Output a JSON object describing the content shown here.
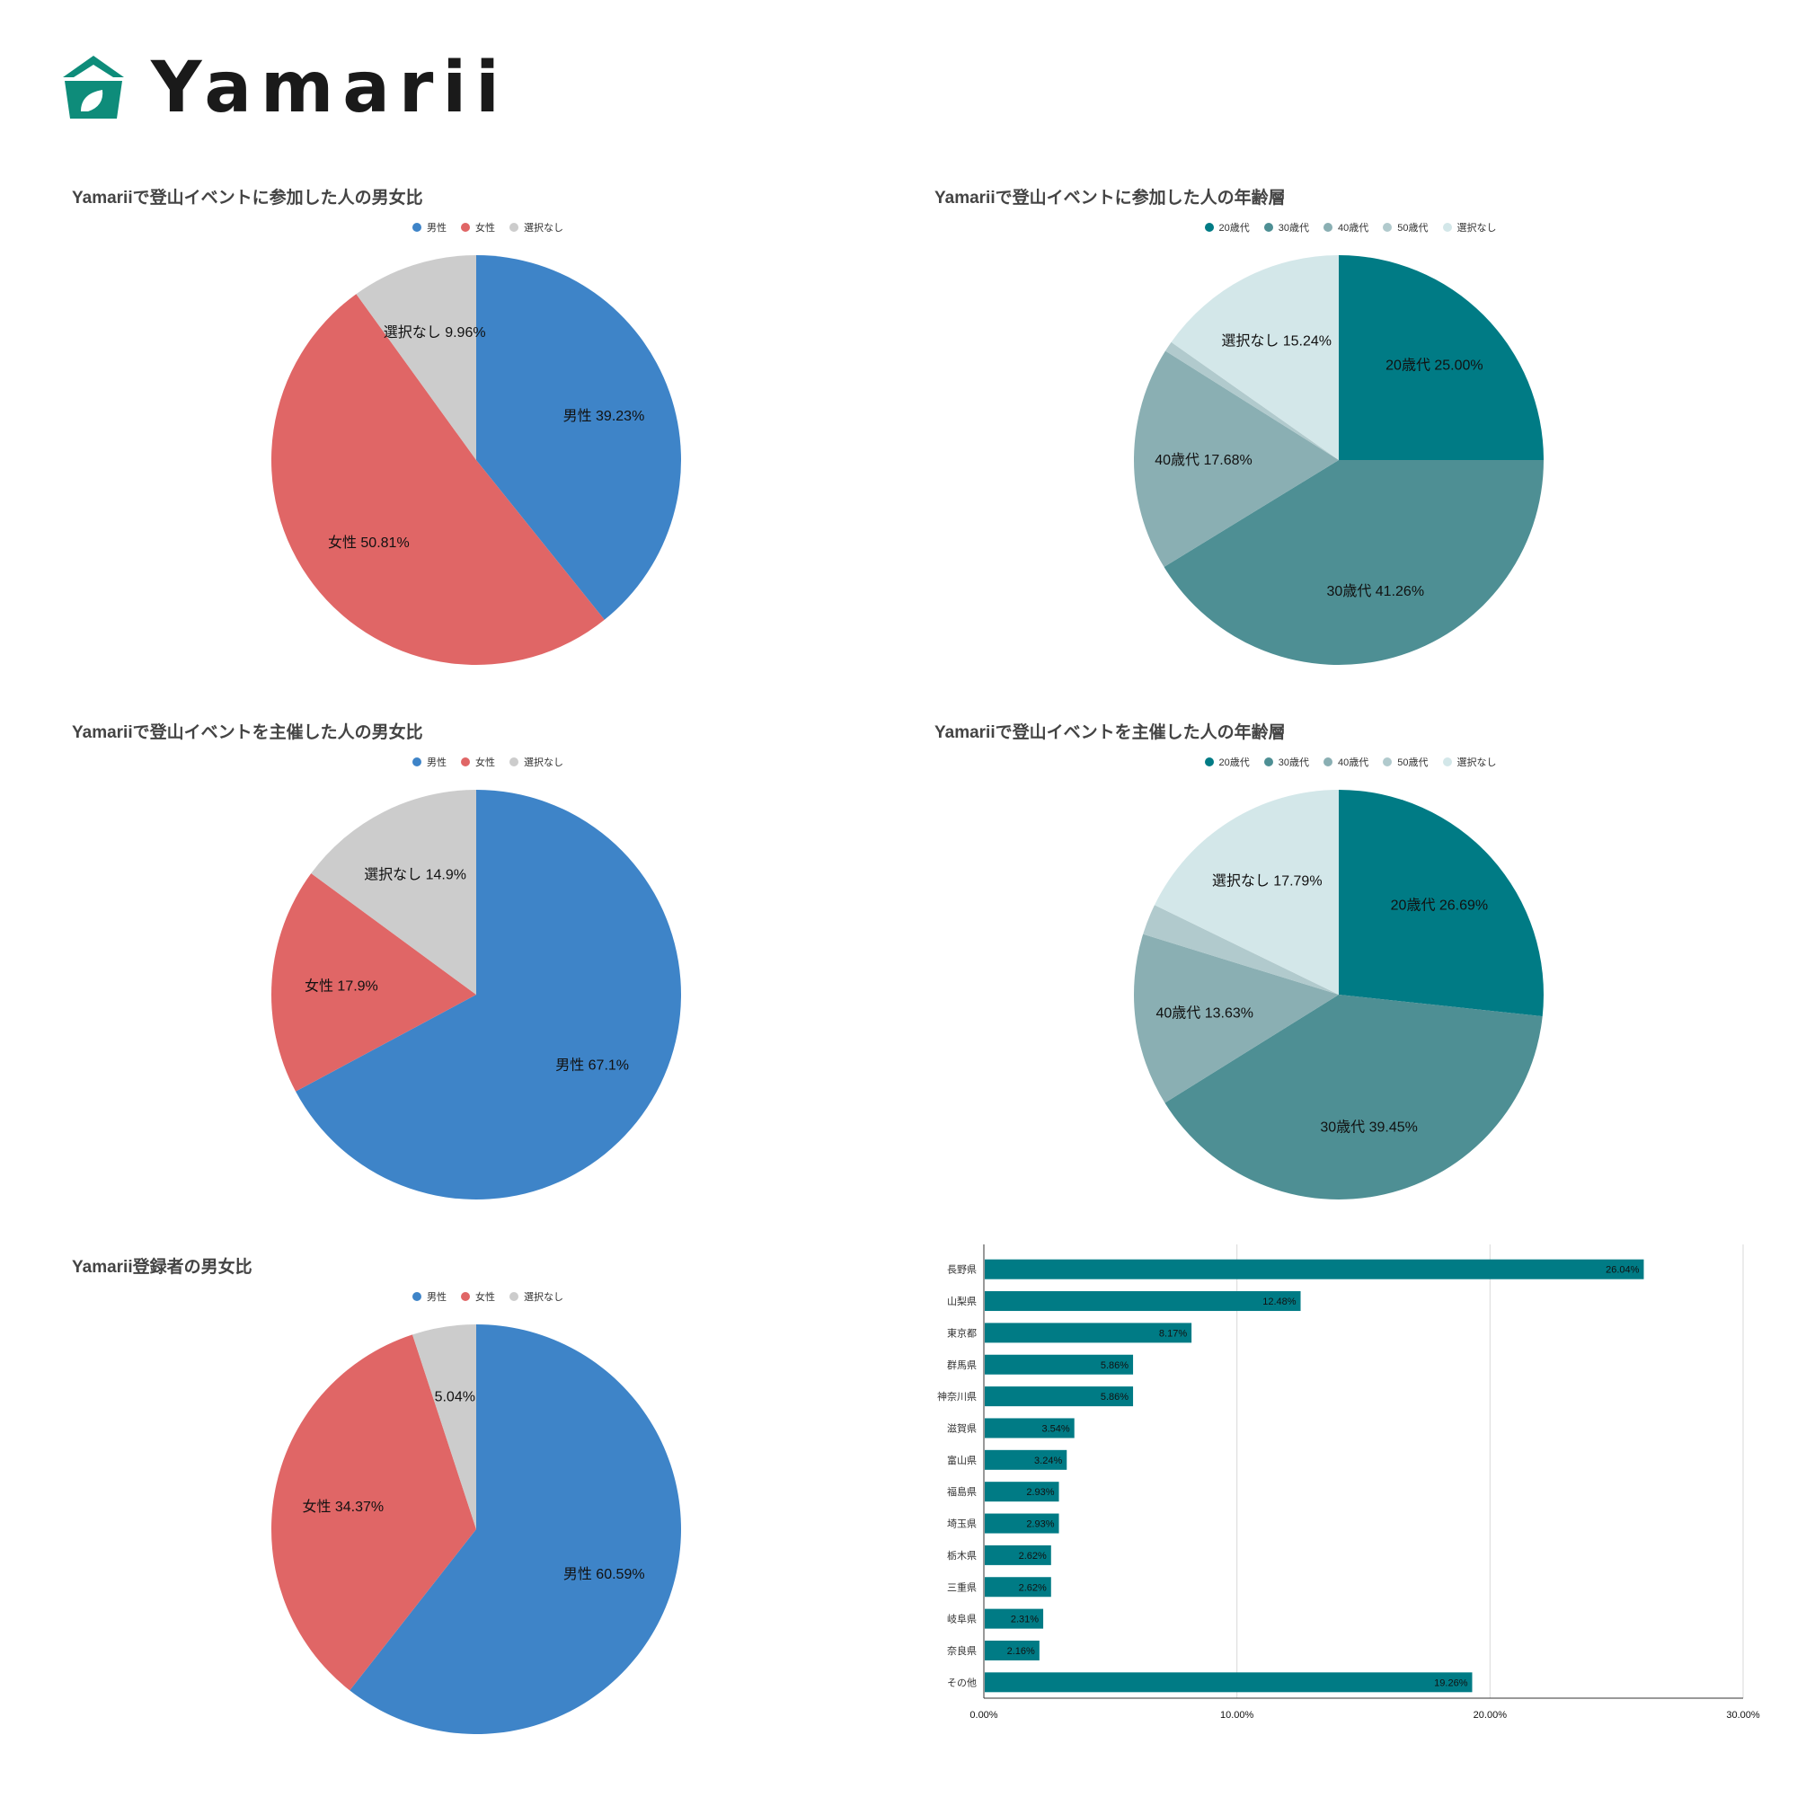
{
  "brand": {
    "name": "Yamarii",
    "accent": "#0e8c7a"
  },
  "chart_data": [
    {
      "id": "participant-gender",
      "type": "pie",
      "title": "Yamariiで登山イベントに参加した人の男女比",
      "legend_position": "top",
      "slices": [
        {
          "name": "男性",
          "value": 39.23,
          "label": "男性 39.23%",
          "color": "#3e84c8"
        },
        {
          "name": "女性",
          "value": 50.81,
          "label": "女性 50.81%",
          "color": "#e06666"
        },
        {
          "name": "選択なし",
          "value": 9.96,
          "label": "選択なし 9.96%",
          "color": "#cccccc"
        }
      ]
    },
    {
      "id": "participant-age",
      "type": "pie",
      "title": "Yamariiで登山イベントに参加した人の年齢層",
      "legend_position": "top",
      "slices": [
        {
          "name": "20歳代",
          "value": 25.0,
          "label": "20歳代 25.00%",
          "color": "#007b85"
        },
        {
          "name": "30歳代",
          "value": 41.26,
          "label": "30歳代 41.26%",
          "color": "#4e8f94"
        },
        {
          "name": "40歳代",
          "value": 17.68,
          "label": "40歳代 17.68%",
          "color": "#8aafb3"
        },
        {
          "name": "50歳代",
          "value": 0.82,
          "label": "",
          "color": "#b1cacd"
        },
        {
          "name": "選択なし",
          "value": 15.24,
          "label": "選択なし 15.24%",
          "color": "#d3e7e9"
        }
      ]
    },
    {
      "id": "organizer-gender",
      "type": "pie",
      "title": "Yamariiで登山イベントを主催した人の男女比",
      "legend_position": "top",
      "slices": [
        {
          "name": "男性",
          "value": 67.1,
          "label": "男性 67.1%",
          "color": "#3e84c8"
        },
        {
          "name": "女性",
          "value": 17.9,
          "label": "女性 17.9%",
          "color": "#e06666"
        },
        {
          "name": "選択なし",
          "value": 14.9,
          "label": "選択なし 14.9%",
          "color": "#cccccc"
        }
      ]
    },
    {
      "id": "organizer-age",
      "type": "pie",
      "title": "Yamariiで登山イベントを主催した人の年齢層",
      "legend_position": "top",
      "slices": [
        {
          "name": "20歳代",
          "value": 26.69,
          "label": "20歳代 26.69%",
          "color": "#007b85"
        },
        {
          "name": "30歳代",
          "value": 39.45,
          "label": "30歳代 39.45%",
          "color": "#4e8f94"
        },
        {
          "name": "40歳代",
          "value": 13.63,
          "label": "40歳代 13.63%",
          "color": "#8aafb3"
        },
        {
          "name": "50歳代",
          "value": 2.44,
          "label": "",
          "color": "#b1cacd"
        },
        {
          "name": "選択なし",
          "value": 17.79,
          "label": "選択なし 17.79%",
          "color": "#d3e7e9"
        }
      ]
    },
    {
      "id": "registrant-gender",
      "type": "pie",
      "title": "Yamarii登録者の男女比",
      "legend_position": "top",
      "slices": [
        {
          "name": "男性",
          "value": 60.59,
          "label": "男性 60.59%",
          "color": "#3e84c8"
        },
        {
          "name": "女性",
          "value": 34.37,
          "label": "女性 34.37%",
          "color": "#e06666"
        },
        {
          "name": "選択なし",
          "value": 5.04,
          "label": "5.04%",
          "color": "#cccccc"
        }
      ]
    },
    {
      "id": "prefecture",
      "type": "bar",
      "orientation": "horizontal",
      "title": "",
      "bar_color": "#007b85",
      "xlim": [
        0,
        30
      ],
      "x_ticks": [
        "0.00%",
        "10.00%",
        "20.00%",
        "30.00%"
      ],
      "grid": true,
      "categories": [
        "長野県",
        "山梨県",
        "東京都",
        "群馬県",
        "神奈川県",
        "滋賀県",
        "富山県",
        "福島県",
        "埼玉県",
        "栃木県",
        "三重県",
        "岐阜県",
        "奈良県",
        "その他"
      ],
      "values": [
        26.04,
        12.48,
        8.17,
        5.86,
        5.86,
        3.54,
        3.24,
        2.93,
        2.93,
        2.62,
        2.62,
        2.31,
        2.16,
        19.26
      ],
      "value_labels": [
        "26.04%",
        "12.48%",
        "8.17%",
        "5.86%",
        "5.86%",
        "3.54%",
        "3.24%",
        "2.93%",
        "2.93%",
        "2.62%",
        "2.62%",
        "2.31%",
        "2.16%",
        "19.26%"
      ]
    }
  ]
}
